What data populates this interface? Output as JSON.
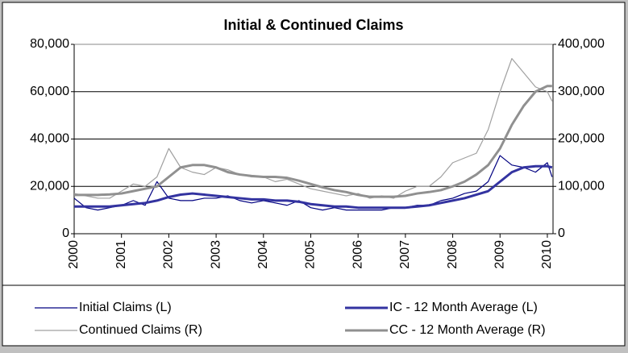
{
  "chart_data": {
    "type": "line",
    "title": "Initial & Continued Claims",
    "x": [
      2000,
      2000.25,
      2000.5,
      2000.75,
      2001,
      2001.25,
      2001.5,
      2001.75,
      2002,
      2002.25,
      2002.5,
      2002.75,
      2003,
      2003.25,
      2003.5,
      2003.75,
      2004,
      2004.25,
      2004.5,
      2004.75,
      2005,
      2005.25,
      2005.5,
      2005.75,
      2006,
      2006.25,
      2006.5,
      2006.75,
      2007,
      2007.25,
      2007.5,
      2007.75,
      2008,
      2008.25,
      2008.5,
      2008.75,
      2009,
      2009.25,
      2009.5,
      2009.75,
      2010,
      2010.1
    ],
    "xlim": [
      2000,
      2010.12
    ],
    "xticks": [
      2000,
      2001,
      2002,
      2003,
      2004,
      2005,
      2006,
      2007,
      2008,
      2009,
      2010
    ],
    "ylim": [
      0,
      80000
    ],
    "yticks": [
      {
        "value": 0,
        "label": "0"
      },
      {
        "value": 20000,
        "label": "20,000"
      },
      {
        "value": 40000,
        "label": "40,000"
      },
      {
        "value": 60000,
        "label": "60,000"
      },
      {
        "value": 80000,
        "label": "80,000"
      }
    ],
    "y2lim": [
      0,
      400000
    ],
    "y2ticks": [
      {
        "value": 0,
        "label": "0"
      },
      {
        "value": 100000,
        "label": "100,000"
      },
      {
        "value": 200000,
        "label": "200,000"
      },
      {
        "value": 300000,
        "label": "300,000"
      },
      {
        "value": 400000,
        "label": "400,000"
      }
    ],
    "grid": true,
    "legend": "bottom",
    "series": [
      {
        "name": "Initial Claims (L)",
        "color": "#000080",
        "line_width": 1.2,
        "values": [
          15000,
          11000,
          10000,
          11000,
          12000,
          14000,
          12000,
          22000,
          15000,
          14000,
          14000,
          15000,
          15000,
          16000,
          14000,
          13000,
          14000,
          13000,
          12000,
          14000,
          11000,
          10000,
          11000,
          10000,
          10000,
          10000,
          10000,
          11000,
          11000,
          12000,
          12000,
          14000,
          15000,
          17000,
          18000,
          22000,
          33000,
          29000,
          28000,
          26000,
          30000,
          24000
        ]
      },
      {
        "name": "Continued Claims (R)",
        "color": "#a0a0a0",
        "line_width": 1.2,
        "axis": "y2",
        "values": [
          85000,
          80000,
          75000,
          75000,
          90000,
          105000,
          100000,
          120000,
          180000,
          140000,
          130000,
          125000,
          140000,
          135000,
          125000,
          120000,
          120000,
          110000,
          115000,
          105000,
          95000,
          90000,
          85000,
          80000,
          85000,
          75000,
          80000,
          75000,
          90000,
          100000,
          100000,
          120000,
          150000,
          160000,
          170000,
          220000,
          300000,
          370000,
          340000,
          310000,
          300000,
          280000
        ]
      },
      {
        "name": "IC - 12 Month Average (L)",
        "color": "#3333a0",
        "line_width": 3,
        "values": [
          11500,
          11500,
          11500,
          11500,
          12000,
          12500,
          13000,
          14000,
          15500,
          16500,
          17000,
          16500,
          16000,
          15500,
          15000,
          14500,
          14500,
          14000,
          14000,
          13500,
          12500,
          12000,
          11500,
          11500,
          11000,
          11000,
          11000,
          11000,
          11000,
          11500,
          12000,
          13000,
          14000,
          15000,
          16500,
          18000,
          22000,
          26000,
          28000,
          28500,
          28500,
          28000
        ]
      },
      {
        "name": "CC - 12 Month Average (R)",
        "color": "#909090",
        "line_width": 3,
        "axis": "y2",
        "values": [
          82000,
          82000,
          82000,
          83000,
          85000,
          90000,
          95000,
          100000,
          120000,
          140000,
          145000,
          145000,
          140000,
          130000,
          125000,
          122000,
          120000,
          120000,
          118000,
          112000,
          105000,
          98000,
          92000,
          88000,
          82000,
          78000,
          78000,
          78000,
          80000,
          85000,
          88000,
          92000,
          100000,
          110000,
          125000,
          145000,
          180000,
          230000,
          270000,
          300000,
          312000,
          312000
        ]
      }
    ]
  }
}
